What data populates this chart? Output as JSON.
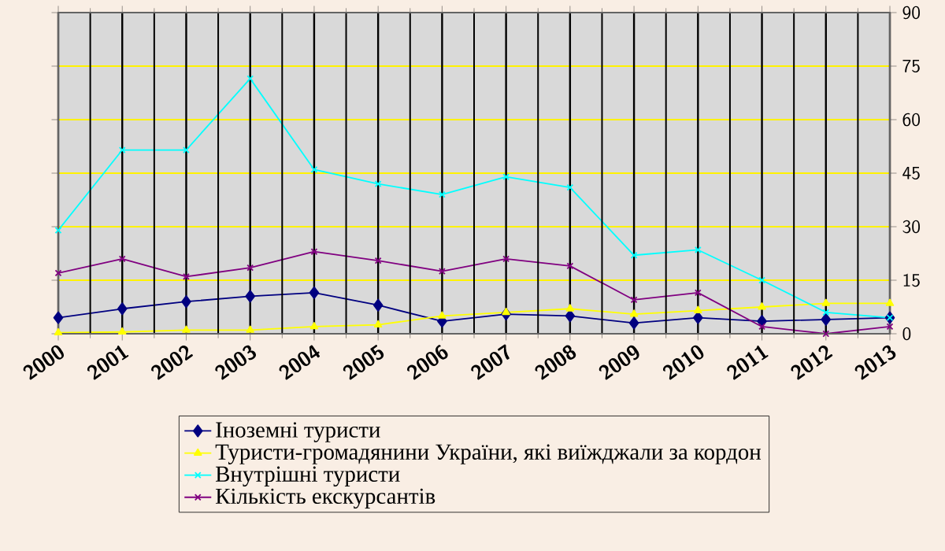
{
  "chart_data": {
    "type": "line",
    "categories": [
      "2000",
      "2001",
      "2002",
      "2003",
      "2004",
      "2005",
      "2006",
      "2007",
      "2008",
      "2009",
      "2010",
      "2011",
      "2012",
      "2013"
    ],
    "series": [
      {
        "name": "Іноземні туристи",
        "color": "#000080",
        "marker": "diamond",
        "values": [
          4.5,
          7,
          9,
          10.5,
          11.5,
          8,
          3.5,
          5.5,
          5,
          3,
          4.5,
          3.5,
          4,
          4.5
        ]
      },
      {
        "name": "Туристи-громадянини України, які виїжджали за кордон",
        "color": "#ffff00",
        "marker": "triangle",
        "values": [
          0.3,
          0.5,
          1,
          1,
          2,
          2.5,
          5,
          6,
          7,
          5.5,
          6.5,
          7.5,
          8.5,
          8.5
        ]
      },
      {
        "name": "Внутрішні туристи",
        "color": "#00ffff",
        "marker": "cross",
        "values": [
          29,
          51.5,
          51.5,
          71.5,
          46,
          42,
          39,
          44,
          41,
          22,
          23.5,
          15,
          6,
          4.5
        ]
      },
      {
        "name": "Кількість екскурсантів",
        "color": "#800080",
        "marker": "cross",
        "values": [
          17,
          21,
          16,
          18.5,
          23,
          20.5,
          17.5,
          21,
          19,
          9.5,
          11.5,
          2,
          0,
          2
        ]
      }
    ],
    "ylim": [
      0,
      90
    ],
    "yticks": [
      0,
      15,
      30,
      45,
      60,
      75,
      90
    ],
    "grid": true,
    "legend": "bottom"
  }
}
